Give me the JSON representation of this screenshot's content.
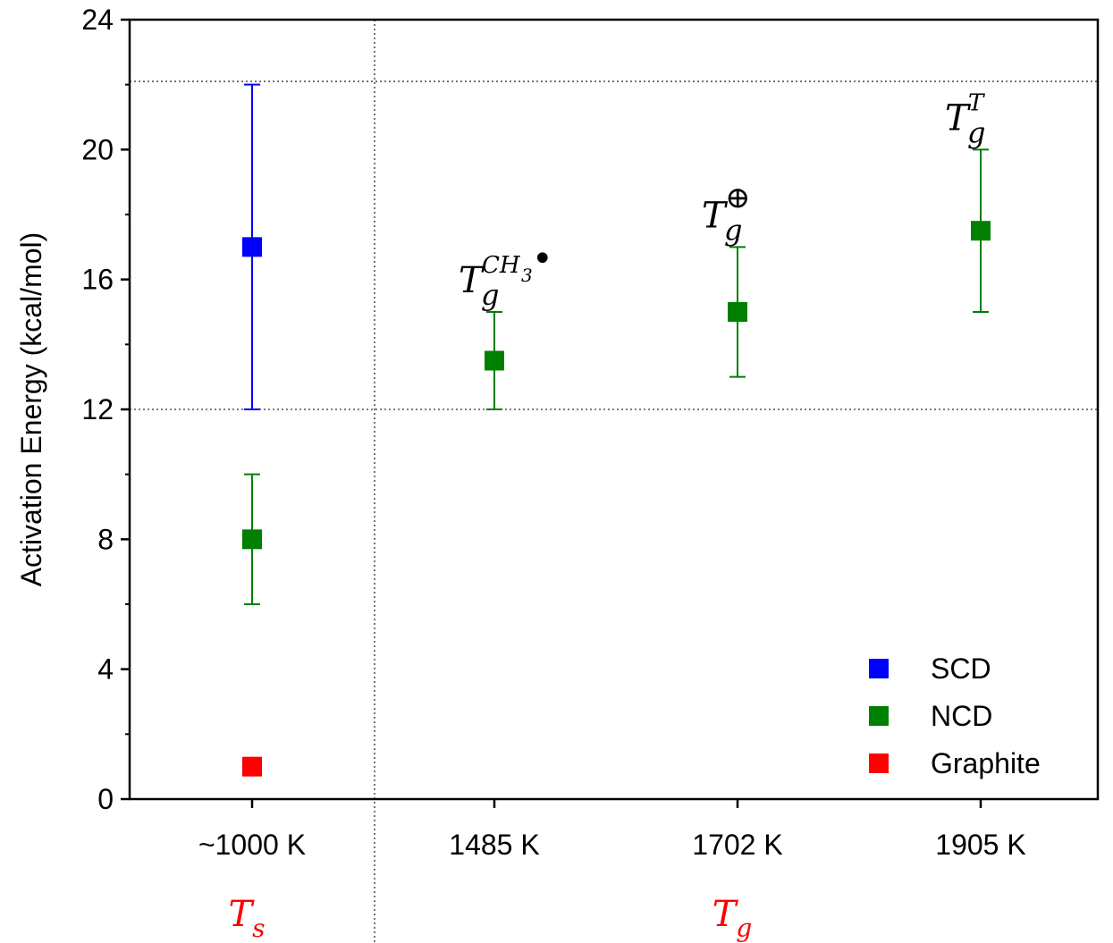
{
  "chart_data": {
    "type": "scatter",
    "ylabel": "Activation Energy (kcal/mol)",
    "ylim": [
      0,
      24
    ],
    "yticks": [
      "0",
      "4",
      "8",
      "12",
      "16",
      "20",
      "24"
    ],
    "categories": [
      "~1000 K",
      "1485 K",
      "1702 K",
      "1905 K"
    ],
    "group_labels": [
      {
        "base": "T",
        "sub": "s",
        "color": "#ff0000",
        "under": "~1000 K"
      },
      {
        "base": "T",
        "sub": "g",
        "color": "#ff0000",
        "under": "1702 K"
      }
    ],
    "reference_lines": [
      12,
      22.1
    ],
    "separator_after_category": "~1000 K",
    "series": [
      {
        "name": "SCD",
        "color": "#0000ff",
        "points": [
          {
            "category": "~1000 K",
            "y": 17,
            "err_low": 12,
            "err_high": 22
          }
        ]
      },
      {
        "name": "NCD",
        "color": "#008000",
        "points": [
          {
            "category": "~1000 K",
            "y": 8,
            "err_low": 6,
            "err_high": 10
          },
          {
            "category": "1485 K",
            "y": 13.5,
            "err_low": 12,
            "err_high": 15
          },
          {
            "category": "1702 K",
            "y": 15,
            "err_low": 13,
            "err_high": 17
          },
          {
            "category": "1905 K",
            "y": 17.5,
            "err_low": 15,
            "err_high": 20
          }
        ]
      },
      {
        "name": "Graphite",
        "color": "#ff0000",
        "points": [
          {
            "category": "~1000 K",
            "y": 1
          }
        ]
      }
    ],
    "annotations": [
      {
        "category": "1485 K",
        "base": "T",
        "sub": "g",
        "sup": "CH",
        "sup_sub": "3",
        "sup_mark": "•"
      },
      {
        "category": "1702 K",
        "base": "T",
        "sub": "g",
        "sup": "⊕"
      },
      {
        "category": "1905 K",
        "base": "T",
        "sub": "g",
        "sup": "T"
      }
    ],
    "legend_position": "bottom-right"
  }
}
